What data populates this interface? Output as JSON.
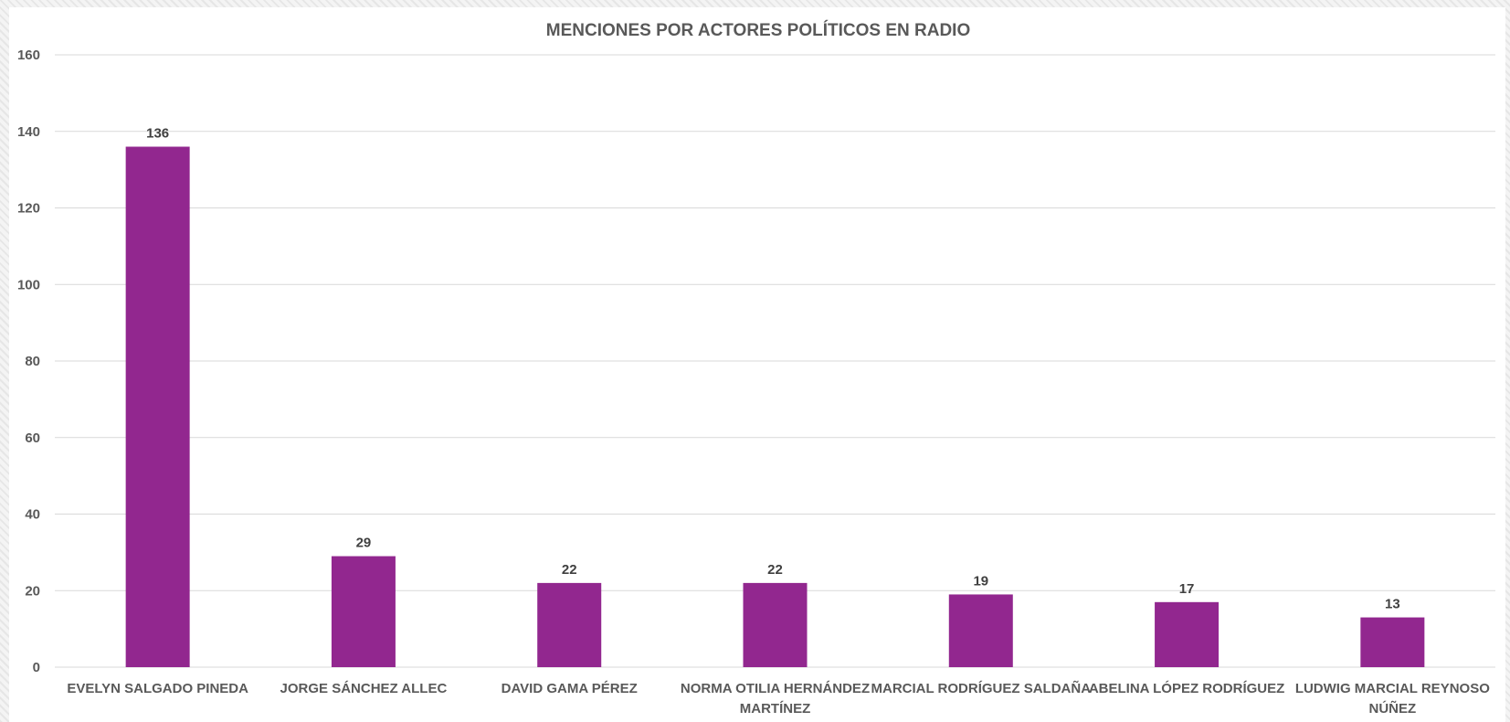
{
  "chart_data": {
    "type": "bar",
    "title": "MENCIONES POR ACTORES POLÍTICOS EN RADIO",
    "categories": [
      "EVELYN SALGADO PINEDA",
      "JORGE SÁNCHEZ ALLEC",
      "DAVID GAMA PÉREZ",
      "NORMA OTILIA HERNÁNDEZ MARTÍNEZ",
      "MARCIAL RODRÍGUEZ SALDAÑA",
      "ABELINA LÓPEZ RODRÍGUEZ",
      "LUDWIG MARCIAL REYNOSO NÚÑEZ"
    ],
    "values": [
      136,
      29,
      22,
      22,
      19,
      17,
      13
    ],
    "ylim": [
      0,
      160
    ],
    "yticks": [
      0,
      20,
      40,
      60,
      80,
      100,
      120,
      140,
      160
    ],
    "grid": true,
    "legend": "none",
    "colors": {
      "bar": "#92278f",
      "grid": "#d9d9d9"
    }
  }
}
